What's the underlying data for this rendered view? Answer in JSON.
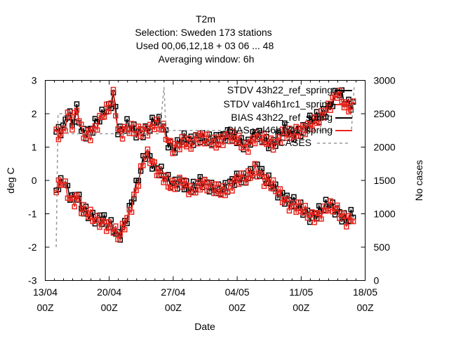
{
  "chart_data": {
    "type": "line",
    "title_lines": [
      "T2m",
      "Selection: Sweden     173 stations",
      "Used  00,06,12,18  + 03 06 ... 48",
      "Averaging window:  6h"
    ],
    "xlabel": "Date",
    "ylabel": "deg C",
    "y2label": "No cases",
    "xlim": [
      0,
      35
    ],
    "ylim": [
      -3,
      3
    ],
    "y2lim": [
      0,
      3000
    ],
    "x_ticks": [
      {
        "x": 0,
        "line1": "13/04",
        "line2": "00Z"
      },
      {
        "x": 7,
        "line1": "20/04",
        "line2": "00Z"
      },
      {
        "x": 14,
        "line1": "27/04",
        "line2": "00Z"
      },
      {
        "x": 21,
        "line1": "04/05",
        "line2": "00Z"
      },
      {
        "x": 28,
        "line1": "11/05",
        "line2": "00Z"
      },
      {
        "x": 35,
        "line1": "18/05",
        "line2": "00Z"
      }
    ],
    "y_ticks": [
      "-3",
      "-2",
      "-1",
      "0",
      "1",
      "2",
      "3"
    ],
    "y2_ticks": [
      "0",
      "500",
      "1000",
      "1500",
      "2000",
      "2500",
      "3000"
    ],
    "legend_position": "top-right",
    "series_colors": {
      "black": "#000000",
      "red": "#e8261e",
      "cases": "#999999"
    },
    "series": [
      {
        "name": "STDV 43h22_ref_spring",
        "legend": "STDV 43h22_ref_spring",
        "color": "#000000",
        "axis": "y1",
        "marker": "square",
        "profile": "stdv",
        "phase": 1
      },
      {
        "name": "STDV val46h1rc1_spring",
        "legend": "STDV val46h1rc1_spring",
        "color": "#e8261e",
        "axis": "y1",
        "marker": "square",
        "profile": "stdv",
        "phase": 2
      },
      {
        "name": "BIAS 43h22_ref_spring",
        "legend": "BIAS 43h22_ref_spring",
        "color": "#000000",
        "axis": "y1",
        "marker": "square",
        "profile": "bias",
        "phase": 3
      },
      {
        "name": "BIAS val46h1rc1_spring",
        "legend": "BIAS val46h1rc1_spring",
        "color": "#e8261e",
        "axis": "y1",
        "marker": "square",
        "profile": "bias",
        "phase": 4
      },
      {
        "name": "CASES",
        "legend": "CASES",
        "color": "#999999",
        "axis": "y2",
        "dashed": true,
        "x": [
          1.2,
          1.4,
          2.0,
          2.5,
          12.5,
          13.0,
          13.2,
          33.5,
          33.8,
          33.9
        ],
        "values": [
          500,
          2500,
          2500,
          2200,
          2200,
          2900,
          2250,
          2250,
          2900,
          2900
        ]
      }
    ],
    "profiles": {
      "stdv": {
        "x": [
          1.2,
          2.0,
          2.5,
          3.0,
          3.5,
          4.0,
          5.0,
          6.0,
          7.0,
          7.5,
          8.0,
          9.0,
          10.0,
          11.0,
          12.0,
          13.0,
          13.5,
          14.0,
          15.0,
          16.0,
          17.0,
          18.0,
          19.0,
          20.0,
          21.0,
          22.0,
          23.0,
          24.0,
          25.0,
          26.0,
          27.0,
          28.0,
          29.0,
          30.0,
          31.0,
          32.0,
          33.0,
          33.8
        ],
        "values": [
          1.5,
          1.5,
          2.0,
          1.6,
          2.2,
          1.5,
          1.5,
          1.8,
          2.2,
          2.7,
          1.5,
          1.6,
          1.4,
          1.6,
          1.8,
          1.5,
          1.1,
          1.0,
          1.3,
          1.1,
          1.3,
          1.3,
          1.2,
          1.3,
          1.3,
          1.1,
          1.3,
          1.2,
          1.2,
          1.5,
          1.3,
          1.6,
          1.8,
          1.8,
          2.2,
          2.8,
          2.2,
          2.2
        ]
      },
      "bias": {
        "x": [
          1.2,
          2.0,
          2.5,
          3.0,
          3.5,
          4.0,
          5.0,
          6.0,
          7.0,
          7.5,
          8.0,
          9.0,
          10.0,
          10.5,
          11.0,
          12.0,
          13.0,
          13.5,
          14.0,
          15.0,
          16.0,
          17.0,
          18.0,
          19.0,
          20.0,
          21.0,
          22.0,
          23.0,
          24.0,
          25.0,
          26.0,
          27.0,
          28.0,
          29.0,
          30.0,
          31.0,
          32.0,
          33.0,
          33.8
        ],
        "values": [
          -0.2,
          0.1,
          -0.3,
          -0.6,
          -0.5,
          -0.9,
          -1.0,
          -1.1,
          -1.4,
          -1.5,
          -1.7,
          -1.0,
          -0.2,
          0.3,
          0.8,
          0.5,
          0.2,
          -0.1,
          -0.2,
          0.0,
          -0.2,
          -0.1,
          -0.2,
          -0.2,
          -0.2,
          0.0,
          0.1,
          0.5,
          0.0,
          -0.2,
          -0.4,
          -0.7,
          -0.9,
          -1.0,
          -0.9,
          -0.8,
          -0.9,
          -1.1,
          -1.0
        ]
      }
    },
    "cases_axis_note": "dashed grey line on right axis (No cases)"
  }
}
